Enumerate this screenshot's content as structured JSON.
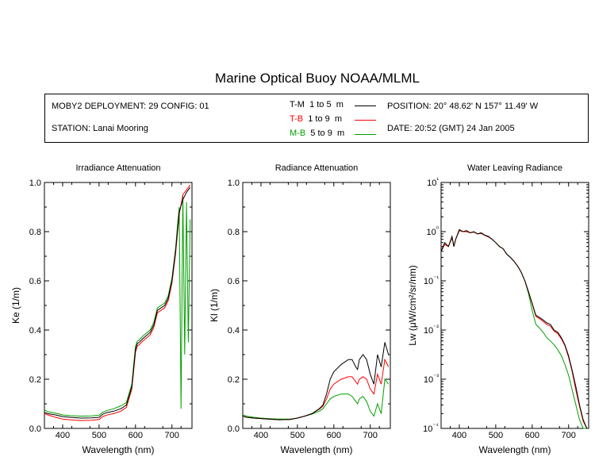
{
  "title": "Marine Optical Buoy NOAA/MLML",
  "info": {
    "deployment": "MOBY2 DEPLOYMENT: 29 CONFIG: 01",
    "station": "STATION: Lanai Mooring",
    "position": "POSITION: 20° 48.62' N   157° 11.49' W",
    "date": "DATE: 20:52 (GMT) 24 Jan 2005",
    "legend": [
      {
        "code": "T-M",
        "range": "1 to 5",
        "unit": "m",
        "color": "#000000"
      },
      {
        "code": "T-B",
        "range": "1 to 9",
        "unit": "m",
        "color": "#ff0000"
      },
      {
        "code": "M-B",
        "range": "5 to 9",
        "unit": "m",
        "color": "#00a000"
      }
    ]
  },
  "colors": {
    "T-M": "#000000",
    "T-B": "#ff0000",
    "M-B": "#00a000"
  },
  "chart_data": [
    {
      "type": "line",
      "title": "Irradiance Attenuation",
      "xlabel": "Wavelength (nm)",
      "ylabel": "Ke  (1/m)",
      "xlim": [
        350,
        755
      ],
      "ylim": [
        0,
        1.0
      ],
      "xticks": [
        "400",
        "500",
        "600",
        "700"
      ],
      "yticks": [
        "0.0",
        "0.2",
        "0.4",
        "0.6",
        "0.8",
        "1.0"
      ],
      "series": [
        {
          "name": "T-M",
          "x": [
            350,
            360,
            380,
            400,
            420,
            450,
            480,
            500,
            510,
            520,
            540,
            560,
            575,
            590,
            600,
            605,
            610,
            620,
            640,
            650,
            660,
            670,
            680,
            690,
            700,
            710,
            715,
            720,
            730,
            740,
            750
          ],
          "y": [
            0.065,
            0.06,
            0.055,
            0.048,
            0.045,
            0.042,
            0.043,
            0.045,
            0.058,
            0.064,
            0.07,
            0.08,
            0.095,
            0.17,
            0.32,
            0.345,
            0.35,
            0.365,
            0.39,
            0.42,
            0.48,
            0.49,
            0.5,
            0.53,
            0.6,
            0.72,
            0.8,
            0.88,
            0.93,
            0.96,
            0.98
          ]
        },
        {
          "name": "T-B",
          "x": [
            350,
            360,
            380,
            400,
            420,
            450,
            480,
            500,
            510,
            520,
            540,
            560,
            575,
            590,
            600,
            605,
            610,
            620,
            640,
            650,
            660,
            670,
            680,
            690,
            700,
            710,
            715,
            720,
            730,
            740,
            750
          ],
          "y": [
            0.06,
            0.055,
            0.045,
            0.038,
            0.035,
            0.032,
            0.033,
            0.036,
            0.048,
            0.054,
            0.06,
            0.07,
            0.085,
            0.16,
            0.31,
            0.335,
            0.34,
            0.355,
            0.38,
            0.41,
            0.47,
            0.48,
            0.49,
            0.52,
            0.59,
            0.71,
            0.79,
            0.87,
            0.95,
            0.97,
            0.99
          ]
        },
        {
          "name": "M-B",
          "x": [
            350,
            360,
            380,
            400,
            420,
            450,
            480,
            500,
            510,
            520,
            540,
            560,
            575,
            590,
            600,
            605,
            610,
            620,
            640,
            650,
            660,
            670,
            680,
            690,
            700,
            710,
            715,
            720,
            725,
            730,
            735,
            740,
            745,
            750
          ],
          "y": [
            0.075,
            0.068,
            0.062,
            0.055,
            0.052,
            0.05,
            0.051,
            0.054,
            0.066,
            0.072,
            0.08,
            0.092,
            0.105,
            0.18,
            0.335,
            0.355,
            0.36,
            0.375,
            0.4,
            0.43,
            0.49,
            0.5,
            0.51,
            0.54,
            0.61,
            0.73,
            0.82,
            0.9,
            0.08,
            0.95,
            0.3,
            0.92,
            0.35,
            0.85
          ]
        }
      ]
    },
    {
      "type": "line",
      "title": "Radiance Attenuation",
      "xlabel": "Wavelength (nm)",
      "ylabel": "Kl  (1/m)",
      "xlim": [
        350,
        755
      ],
      "ylim": [
        0,
        1.0
      ],
      "xticks": [
        "400",
        "500",
        "600",
        "700"
      ],
      "yticks": [
        "0.0",
        "0.2",
        "0.4",
        "0.6",
        "0.8",
        "1.0"
      ],
      "series": [
        {
          "name": "T-M",
          "x": [
            350,
            360,
            380,
            400,
            420,
            450,
            480,
            500,
            520,
            540,
            560,
            570,
            580,
            590,
            600,
            620,
            640,
            650,
            660,
            665,
            670,
            680,
            690,
            700,
            710,
            720,
            730,
            740,
            750
          ],
          "y": [
            0.05,
            0.045,
            0.042,
            0.04,
            0.038,
            0.035,
            0.036,
            0.042,
            0.05,
            0.06,
            0.08,
            0.095,
            0.14,
            0.2,
            0.23,
            0.26,
            0.28,
            0.28,
            0.25,
            0.24,
            0.28,
            0.3,
            0.28,
            0.22,
            0.18,
            0.3,
            0.25,
            0.35,
            0.3
          ]
        },
        {
          "name": "T-B",
          "x": [
            350,
            360,
            380,
            400,
            420,
            450,
            480,
            500,
            520,
            540,
            560,
            570,
            580,
            590,
            600,
            620,
            640,
            650,
            660,
            665,
            670,
            680,
            690,
            700,
            710,
            720,
            730,
            740,
            750
          ],
          "y": [
            0.05,
            0.045,
            0.042,
            0.04,
            0.038,
            0.035,
            0.036,
            0.042,
            0.05,
            0.06,
            0.078,
            0.09,
            0.12,
            0.16,
            0.18,
            0.2,
            0.21,
            0.21,
            0.19,
            0.18,
            0.2,
            0.21,
            0.2,
            0.16,
            0.14,
            0.22,
            0.18,
            0.28,
            0.25
          ]
        },
        {
          "name": "M-B",
          "x": [
            350,
            360,
            380,
            400,
            420,
            450,
            480,
            500,
            520,
            540,
            560,
            570,
            580,
            590,
            600,
            620,
            640,
            650,
            660,
            665,
            670,
            680,
            690,
            700,
            710,
            720,
            730,
            740,
            750
          ],
          "y": [
            0.055,
            0.05,
            0.045,
            0.042,
            0.04,
            0.038,
            0.038,
            0.042,
            0.05,
            0.058,
            0.07,
            0.08,
            0.1,
            0.12,
            0.13,
            0.14,
            0.14,
            0.13,
            0.11,
            0.1,
            0.12,
            0.13,
            0.11,
            0.07,
            0.05,
            0.1,
            0.06,
            0.2,
            0.18
          ]
        }
      ]
    },
    {
      "type": "line",
      "title": "Water Leaving Radiance",
      "xlabel": "Wavelength (nm)",
      "ylabel": "Lw  (μW/cm²/sr/nm)",
      "xlim": [
        350,
        755
      ],
      "ylim": [
        0.0001,
        10
      ],
      "yscale": "log",
      "xticks": [
        "400",
        "500",
        "600",
        "700"
      ],
      "yticks": [
        "10¹",
        "10⁰",
        "10⁻¹",
        "10⁻²",
        "10⁻³",
        "10⁻⁴"
      ],
      "series": [
        {
          "name": "T-M",
          "x": [
            350,
            360,
            370,
            380,
            385,
            390,
            400,
            410,
            420,
            430,
            440,
            450,
            460,
            470,
            480,
            490,
            500,
            510,
            520,
            530,
            540,
            550,
            560,
            570,
            580,
            590,
            600,
            610,
            620,
            630,
            640,
            650,
            660,
            670,
            680,
            690,
            700,
            710,
            720,
            730,
            740,
            750
          ],
          "y": [
            0.4,
            0.6,
            0.5,
            0.8,
            0.5,
            0.7,
            1.1,
            1.0,
            1.05,
            0.95,
            1.0,
            0.9,
            0.95,
            0.85,
            0.8,
            0.7,
            0.6,
            0.5,
            0.45,
            0.35,
            0.3,
            0.25,
            0.2,
            0.15,
            0.1,
            0.06,
            0.035,
            0.02,
            0.018,
            0.016,
            0.014,
            0.013,
            0.01,
            0.009,
            0.007,
            0.005,
            0.003,
            0.0015,
            0.0007,
            0.0003,
            0.00015,
            0.0001
          ]
        },
        {
          "name": "T-B",
          "x": [
            350,
            360,
            370,
            380,
            385,
            390,
            400,
            410,
            420,
            430,
            440,
            450,
            460,
            470,
            480,
            490,
            500,
            510,
            520,
            530,
            540,
            550,
            560,
            570,
            580,
            590,
            600,
            610,
            620,
            630,
            640,
            650,
            660,
            670,
            680,
            690,
            700,
            710,
            720,
            730,
            740,
            750
          ],
          "y": [
            0.4,
            0.55,
            0.5,
            0.75,
            0.5,
            0.7,
            1.05,
            1.0,
            1.0,
            0.95,
            0.98,
            0.9,
            0.92,
            0.84,
            0.78,
            0.7,
            0.6,
            0.5,
            0.45,
            0.35,
            0.3,
            0.25,
            0.2,
            0.15,
            0.1,
            0.06,
            0.034,
            0.019,
            0.017,
            0.015,
            0.013,
            0.012,
            0.0095,
            0.0085,
            0.0066,
            0.0048,
            0.0028,
            0.0014,
            0.0006,
            0.00028,
            0.00014,
            0.0001
          ]
        },
        {
          "name": "M-B",
          "x": [
            350,
            360,
            370,
            380,
            385,
            390,
            400,
            410,
            420,
            430,
            440,
            450,
            460,
            470,
            480,
            490,
            500,
            510,
            520,
            530,
            540,
            550,
            560,
            570,
            580,
            590,
            600,
            610,
            620,
            630,
            640,
            650,
            660,
            670,
            680,
            690,
            700,
            710,
            720,
            730,
            740,
            750
          ],
          "y": [
            0.4,
            0.55,
            0.5,
            0.75,
            0.5,
            0.7,
            1.05,
            1.0,
            1.0,
            0.95,
            0.98,
            0.9,
            0.92,
            0.84,
            0.78,
            0.7,
            0.6,
            0.5,
            0.45,
            0.35,
            0.3,
            0.25,
            0.2,
            0.15,
            0.1,
            0.055,
            0.025,
            0.013,
            0.011,
            0.009,
            0.007,
            0.006,
            0.005,
            0.004,
            0.003,
            0.002,
            0.0012,
            0.0006,
            0.0003,
            0.00015,
            0.0001,
            0.0001
          ]
        }
      ]
    }
  ]
}
